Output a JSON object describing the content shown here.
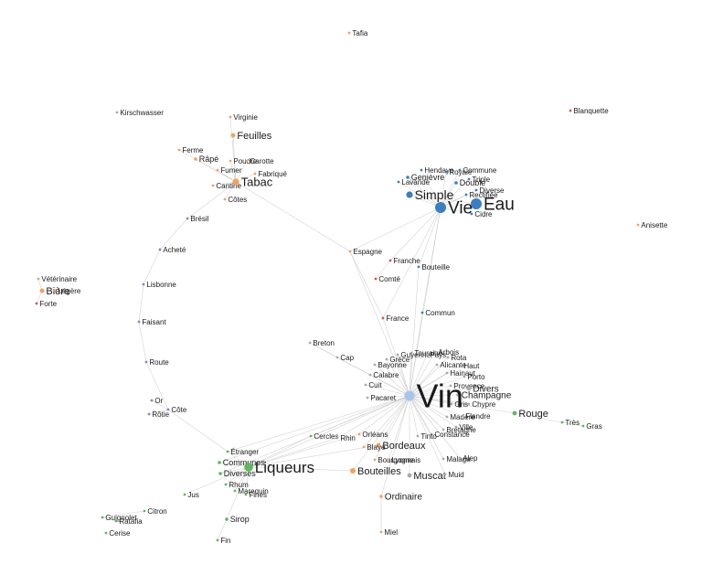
{
  "colors": {
    "orange": "#f5a05a",
    "blue": "#3a7fc1",
    "green": "#5cb85c",
    "red": "#d9534f",
    "purple": "#8a7fc9",
    "gray": "#aaaaaa",
    "hub": "#a9c4ea",
    "edge": "#c8c8c8"
  },
  "nodes": [
    {
      "id": "Tafia",
      "label": "Tafia",
      "c": "orange",
      "s": 1
    },
    {
      "id": "Kirschwasser",
      "label": "Kirschwasser",
      "c": "gray",
      "s": 1
    },
    {
      "id": "Blanquette",
      "label": "Blanquette",
      "c": "red",
      "s": 1
    },
    {
      "id": "Anisette",
      "label": "Anisette",
      "c": "orange",
      "s": 1
    },
    {
      "id": "Virginie",
      "label": "Virginie",
      "c": "orange",
      "s": 1
    },
    {
      "id": "Feuilles",
      "label": "Feuilles",
      "c": "orange",
      "s": 2
    },
    {
      "id": "Ferme",
      "label": "Ferme",
      "c": "orange",
      "s": 1
    },
    {
      "id": "Rape",
      "label": "Râpé",
      "c": "orange",
      "s": 1.5
    },
    {
      "id": "Poudre",
      "label": "Poudre",
      "c": "orange",
      "s": 1
    },
    {
      "id": "Carotte",
      "label": "Carotte",
      "c": "orange",
      "s": 1
    },
    {
      "id": "Fumer",
      "label": "Fumer",
      "c": "orange",
      "s": 1
    },
    {
      "id": "Fabrique",
      "label": "Fabriqué",
      "c": "orange",
      "s": 1
    },
    {
      "id": "Cantine",
      "label": "Cantine",
      "c": "orange",
      "s": 1
    },
    {
      "id": "Tabac",
      "label": "Tabac",
      "c": "orange",
      "s": 3
    },
    {
      "id": "Cotes",
      "label": "Côtes",
      "c": "orange",
      "s": 1
    },
    {
      "id": "Bresil",
      "label": "Brésil",
      "c": "purple",
      "s": 1
    },
    {
      "id": "Achete",
      "label": "Acheté",
      "c": "purple",
      "s": 1
    },
    {
      "id": "Lisbonne",
      "label": "Lisbonne",
      "c": "purple",
      "s": 1
    },
    {
      "id": "Faisant",
      "label": "Faisant",
      "c": "purple",
      "s": 1
    },
    {
      "id": "Route",
      "label": "Route",
      "c": "purple",
      "s": 1
    },
    {
      "id": "Or",
      "label": "Or",
      "c": "purple",
      "s": 1
    },
    {
      "id": "Cote",
      "label": "Côte",
      "c": "purple",
      "s": 1
    },
    {
      "id": "Rotie",
      "label": "Rôtie",
      "c": "purple",
      "s": 1
    },
    {
      "id": "Veterinaire",
      "label": "Vétérinaire",
      "c": "orange",
      "s": 1
    },
    {
      "id": "Biere",
      "label": "Bière",
      "c": "orange",
      "s": 2
    },
    {
      "id": "Legere",
      "label": "Légère",
      "c": "orange",
      "s": 1
    },
    {
      "id": "Forte",
      "label": "Forte",
      "c": "red",
      "s": 1
    },
    {
      "id": "Hendaye",
      "label": "Hendaye",
      "c": "blue",
      "s": 1
    },
    {
      "id": "Royale",
      "label": "Royale",
      "c": "blue",
      "s": 1
    },
    {
      "id": "Commune",
      "label": "Commune",
      "c": "blue",
      "s": 1
    },
    {
      "id": "Genievre",
      "label": "Genièvre",
      "c": "blue",
      "s": 1.5
    },
    {
      "id": "Triple",
      "label": "Triple",
      "c": "blue",
      "s": 1
    },
    {
      "id": "Lavande",
      "label": "Lavande",
      "c": "blue",
      "s": 1
    },
    {
      "id": "Double",
      "label": "Double",
      "c": "blue",
      "s": 1.5
    },
    {
      "id": "Diverse",
      "label": "Diverse",
      "c": "blue",
      "s": 1
    },
    {
      "id": "Simple",
      "label": "Simple",
      "c": "blue",
      "s": 3
    },
    {
      "id": "Rectifiee",
      "label": "Rectifiée",
      "c": "blue",
      "s": 1
    },
    {
      "id": "Eau",
      "label": "Eau",
      "c": "blue",
      "s": 5
    },
    {
      "id": "Vie",
      "label": "Vie",
      "c": "blue",
      "s": 5
    },
    {
      "id": "Cidre",
      "label": "Cidre",
      "c": "blue",
      "s": 1
    },
    {
      "id": "Espagne",
      "label": "Espagne",
      "c": "orange",
      "s": 1
    },
    {
      "id": "Franche",
      "label": "Franche",
      "c": "red",
      "s": 1
    },
    {
      "id": "Bouteille",
      "label": "Bouteille",
      "c": "blue",
      "s": 1
    },
    {
      "id": "Comte",
      "label": "Comté",
      "c": "red",
      "s": 1
    },
    {
      "id": "France",
      "label": "France",
      "c": "red",
      "s": 1
    },
    {
      "id": "Commun",
      "label": "Commun",
      "c": "blue",
      "s": 1
    },
    {
      "id": "Breton",
      "label": "Breton",
      "c": "gray",
      "s": 1
    },
    {
      "id": "Cap",
      "label": "Cap",
      "c": "gray",
      "s": 1
    },
    {
      "id": "Touraine",
      "label": "Touraine",
      "c": "gray",
      "s": 1
    },
    {
      "id": "Arbois",
      "label": "Arbois",
      "c": "gray",
      "s": 1
    },
    {
      "id": "Guyenne",
      "label": "Guyenne",
      "c": "gray",
      "s": 1
    },
    {
      "id": "Pays",
      "label": "Pays",
      "c": "gray",
      "s": 1
    },
    {
      "id": "Grece",
      "label": "Grèce",
      "c": "gray",
      "s": 1
    },
    {
      "id": "Rota",
      "label": "Rota",
      "c": "gray",
      "s": 1
    },
    {
      "id": "Bayonne",
      "label": "Bayonne",
      "c": "gray",
      "s": 1
    },
    {
      "id": "Alicante",
      "label": "Alicante",
      "c": "gray",
      "s": 1
    },
    {
      "id": "Haut",
      "label": "Haut",
      "c": "gray",
      "s": 1
    },
    {
      "id": "Hainaut",
      "label": "Hainaut",
      "c": "gray",
      "s": 1
    },
    {
      "id": "Calabre",
      "label": "Calabre",
      "c": "gray",
      "s": 1
    },
    {
      "id": "Porto",
      "label": "Porto",
      "c": "gray",
      "s": 1
    },
    {
      "id": "Provence",
      "label": "Provence",
      "c": "gray",
      "s": 1
    },
    {
      "id": "Cuit",
      "label": "Cuit",
      "c": "gray",
      "s": 1
    },
    {
      "id": "Divers",
      "label": "Divers",
      "c": "gray",
      "s": 2
    },
    {
      "id": "Champagne",
      "label": "Champagne",
      "c": "gray",
      "s": 1.5
    },
    {
      "id": "Pacaret",
      "label": "Pacaret",
      "c": "gray",
      "s": 1
    },
    {
      "id": "Vin",
      "label": "Vin",
      "c": "hub",
      "s": 8
    },
    {
      "id": "Gris",
      "label": "Gris",
      "c": "gray",
      "s": 1
    },
    {
      "id": "Chypre",
      "label": "Chypre",
      "c": "gray",
      "s": 1
    },
    {
      "id": "Rouge",
      "label": "Rouge",
      "c": "green",
      "s": 2
    },
    {
      "id": "Madere",
      "label": "Madère",
      "c": "gray",
      "s": 1
    },
    {
      "id": "Flandre",
      "label": "Flandre",
      "c": "gray",
      "s": 1
    },
    {
      "id": "Tres",
      "label": "Très",
      "c": "green",
      "s": 1
    },
    {
      "id": "Gras",
      "label": "Gras",
      "c": "green",
      "s": 1
    },
    {
      "id": "Ville",
      "label": "Ville",
      "c": "gray",
      "s": 1
    },
    {
      "id": "Bretagne",
      "label": "Bretagne",
      "c": "gray",
      "s": 1
    },
    {
      "id": "Constance",
      "label": "Constance",
      "c": "gray",
      "s": 1
    },
    {
      "id": "Tinto",
      "label": "Tinto",
      "c": "gray",
      "s": 1
    },
    {
      "id": "Cercles",
      "label": "Cercles",
      "c": "green",
      "s": 1
    },
    {
      "id": "Rhin",
      "label": "Rhin",
      "c": "gray",
      "s": 1
    },
    {
      "id": "Orleans",
      "label": "Orléans",
      "c": "orange",
      "s": 1
    },
    {
      "id": "Bordeaux",
      "label": "Bordeaux",
      "c": "orange",
      "s": 2
    },
    {
      "id": "Blaye",
      "label": "Blaye",
      "c": "orange",
      "s": 1
    },
    {
      "id": "Bourgogne",
      "label": "Bourgogne",
      "c": "orange",
      "s": 1
    },
    {
      "id": "Lyonnais",
      "label": "Lyonnais",
      "c": "orange",
      "s": 1
    },
    {
      "id": "Malaga",
      "label": "Malaga",
      "c": "gray",
      "s": 1
    },
    {
      "id": "Alep",
      "label": "Alep",
      "c": "gray",
      "s": 1
    },
    {
      "id": "Bouteilles",
      "label": "Bouteilles",
      "c": "orange",
      "s": 2.5
    },
    {
      "id": "Muscat",
      "label": "Muscat",
      "c": "gray",
      "s": 2
    },
    {
      "id": "Muid",
      "label": "Muid",
      "c": "gray",
      "s": 1
    },
    {
      "id": "Ordinaire",
      "label": "Ordinaire",
      "c": "orange",
      "s": 1.5
    },
    {
      "id": "Miel",
      "label": "Miel",
      "c": "orange",
      "s": 1
    },
    {
      "id": "Etranger",
      "label": "Étranger",
      "c": "green",
      "s": 1
    },
    {
      "id": "Communes",
      "label": "Communes",
      "c": "green",
      "s": 1.5
    },
    {
      "id": "Liqueurs",
      "label": "Liqueurs",
      "c": "green",
      "s": 4
    },
    {
      "id": "Diverses",
      "label": "Diverses",
      "c": "green",
      "s": 1.5
    },
    {
      "id": "Rhum",
      "label": "Rhum",
      "c": "green",
      "s": 1
    },
    {
      "id": "Jus",
      "label": "Jus",
      "c": "green",
      "s": 1
    },
    {
      "id": "Marequin",
      "label": "Marequin",
      "c": "green",
      "s": 1
    },
    {
      "id": "Fines",
      "label": "Fines",
      "c": "green",
      "s": 1
    },
    {
      "id": "Citron",
      "label": "Citron",
      "c": "green",
      "s": 1
    },
    {
      "id": "Guignolet",
      "label": "Guignolet",
      "c": "green",
      "s": 1
    },
    {
      "id": "Ratafia",
      "label": "Ratafia",
      "c": "green",
      "s": 1
    },
    {
      "id": "Sirop",
      "label": "Sirop",
      "c": "green",
      "s": 1.5
    },
    {
      "id": "Cerise",
      "label": "Cerise",
      "c": "green",
      "s": 1
    },
    {
      "id": "Fin",
      "label": "Fin",
      "c": "green",
      "s": 1
    }
  ],
  "edges": [
    [
      "Vin",
      "Touraine"
    ],
    [
      "Vin",
      "Arbois"
    ],
    [
      "Vin",
      "Guyenne"
    ],
    [
      "Vin",
      "Pays"
    ],
    [
      "Vin",
      "Grece"
    ],
    [
      "Vin",
      "Rota"
    ],
    [
      "Vin",
      "Bayonne"
    ],
    [
      "Vin",
      "Alicante"
    ],
    [
      "Vin",
      "Haut"
    ],
    [
      "Vin",
      "Hainaut"
    ],
    [
      "Vin",
      "Calabre"
    ],
    [
      "Vin",
      "Porto"
    ],
    [
      "Vin",
      "Provence"
    ],
    [
      "Vin",
      "Cuit"
    ],
    [
      "Vin",
      "Divers"
    ],
    [
      "Vin",
      "Champagne"
    ],
    [
      "Vin",
      "Pacaret"
    ],
    [
      "Vin",
      "Gris"
    ],
    [
      "Vin",
      "Chypre"
    ],
    [
      "Vin",
      "Rouge"
    ],
    [
      "Vin",
      "Madere"
    ],
    [
      "Vin",
      "Flandre"
    ],
    [
      "Vin",
      "Ville"
    ],
    [
      "Vin",
      "Bretagne"
    ],
    [
      "Vin",
      "Constance"
    ],
    [
      "Vin",
      "Tinto"
    ],
    [
      "Vin",
      "Cercles"
    ],
    [
      "Vin",
      "Rhin"
    ],
    [
      "Vin",
      "Orleans"
    ],
    [
      "Vin",
      "Bordeaux"
    ],
    [
      "Vin",
      "Blaye"
    ],
    [
      "Vin",
      "Bourgogne"
    ],
    [
      "Vin",
      "Lyonnais"
    ],
    [
      "Vin",
      "Malaga"
    ],
    [
      "Vin",
      "Alep"
    ],
    [
      "Vin",
      "Bouteilles"
    ],
    [
      "Vin",
      "Muscat"
    ],
    [
      "Vin",
      "Muid"
    ],
    [
      "Vin",
      "Ordinaire"
    ],
    [
      "Vin",
      "Liqueurs"
    ],
    [
      "Vin",
      "Espagne"
    ],
    [
      "Vin",
      "France"
    ],
    [
      "Vin",
      "Commun"
    ],
    [
      "Vin",
      "Bouteille"
    ],
    [
      "Vin",
      "Vie"
    ],
    [
      "Vin",
      "Cap"
    ],
    [
      "Vin",
      "Breton"
    ],
    [
      "Vin",
      "Communes"
    ],
    [
      "Vin",
      "Diverses"
    ],
    [
      "Vin",
      "Etranger"
    ],
    [
      "Rouge",
      "Tres"
    ],
    [
      "Tres",
      "Gras"
    ],
    [
      "Ordinaire",
      "Miel"
    ],
    [
      "Cap",
      "Breton"
    ],
    [
      "Vie",
      "Eau"
    ],
    [
      "Vie",
      "Simple"
    ],
    [
      "Vie",
      "Double"
    ],
    [
      "Vie",
      "Triple"
    ],
    [
      "Vie",
      "Cidre"
    ],
    [
      "Vie",
      "Rectifiee"
    ],
    [
      "Vie",
      "Diverse"
    ],
    [
      "Vie",
      "Genievre"
    ],
    [
      "Vie",
      "Lavande"
    ],
    [
      "Vie",
      "Hendaye"
    ],
    [
      "Vie",
      "Royale"
    ],
    [
      "Vie",
      "Commune"
    ],
    [
      "Vie",
      "Espagne"
    ],
    [
      "Vie",
      "France"
    ],
    [
      "Vie",
      "Franche"
    ],
    [
      "Vie",
      "Bouteille"
    ],
    [
      "Vie",
      "Commun"
    ],
    [
      "Eau",
      "Simple"
    ],
    [
      "Espagne",
      "Tabac"
    ],
    [
      "Espagne",
      "France"
    ],
    [
      "Comte",
      "Franche"
    ],
    [
      "Tabac",
      "Feuilles"
    ],
    [
      "Tabac",
      "Virginie"
    ],
    [
      "Tabac",
      "Ferme"
    ],
    [
      "Tabac",
      "Rape"
    ],
    [
      "Tabac",
      "Poudre"
    ],
    [
      "Tabac",
      "Carotte"
    ],
    [
      "Tabac",
      "Fumer"
    ],
    [
      "Tabac",
      "Fabrique"
    ],
    [
      "Tabac",
      "Cantine"
    ],
    [
      "Tabac",
      "Cotes"
    ],
    [
      "Tabac",
      "Bresil"
    ],
    [
      "Bresil",
      "Achete"
    ],
    [
      "Achete",
      "Lisbonne"
    ],
    [
      "Lisbonne",
      "Faisant"
    ],
    [
      "Faisant",
      "Route"
    ],
    [
      "Route",
      "Cote"
    ],
    [
      "Or",
      "Cote"
    ],
    [
      "Cote",
      "Rotie"
    ],
    [
      "Cote",
      "Etranger"
    ],
    [
      "Liqueurs",
      "Etranger"
    ],
    [
      "Liqueurs",
      "Communes"
    ],
    [
      "Liqueurs",
      "Diverses"
    ],
    [
      "Liqueurs",
      "Rhum"
    ],
    [
      "Liqueurs",
      "Jus"
    ],
    [
      "Liqueurs",
      "Marequin"
    ],
    [
      "Liqueurs",
      "Fines"
    ],
    [
      "Liqueurs",
      "Sirop"
    ],
    [
      "Liqueurs",
      "Bouteilles"
    ],
    [
      "Liqueurs",
      "Cercles"
    ],
    [
      "Liqueurs",
      "Bordeaux"
    ],
    [
      "Liqueurs",
      "Orleans"
    ],
    [
      "Liqueurs",
      "Rhin"
    ],
    [
      "Sirop",
      "Fin"
    ],
    [
      "Citron",
      "Guignolet"
    ],
    [
      "Guignolet",
      "Ratafia"
    ],
    [
      "Biere",
      "Legere"
    ],
    [
      "Biere",
      "Forte"
    ],
    [
      "Biere",
      "Veterinaire"
    ]
  ]
}
